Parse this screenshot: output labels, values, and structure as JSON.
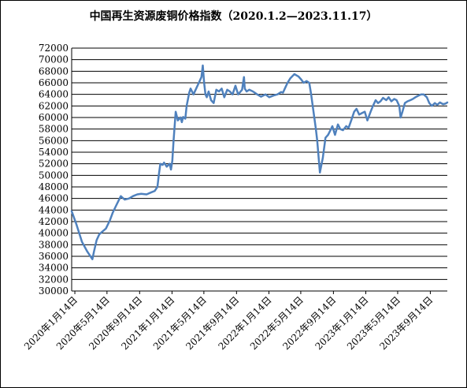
{
  "chart_data": {
    "type": "line",
    "title": "中国再生资源废铜价格指数（2020.1.2—2023.11.17）",
    "xlabel": "",
    "ylabel": "",
    "ylim": [
      30000,
      72000
    ],
    "yticks": [
      30000,
      32000,
      34000,
      36000,
      38000,
      40000,
      42000,
      44000,
      46000,
      48000,
      50000,
      52000,
      54000,
      56000,
      58000,
      60000,
      62000,
      64000,
      66000,
      68000,
      70000,
      72000
    ],
    "xlim": [
      "2020-01-02",
      "2023-11-17"
    ],
    "xticks": [
      {
        "date": "2020-01-14",
        "label": "2020年1月14日"
      },
      {
        "date": "2020-05-14",
        "label": "2020年5月14日"
      },
      {
        "date": "2020-09-14",
        "label": "2020年9月14日"
      },
      {
        "date": "2021-01-14",
        "label": "2021年1月14日"
      },
      {
        "date": "2021-05-14",
        "label": "2021年5月14日"
      },
      {
        "date": "2021-09-14",
        "label": "2021年9月14日"
      },
      {
        "date": "2022-01-14",
        "label": "2022年1月14日"
      },
      {
        "date": "2022-05-14",
        "label": "2022年5月14日"
      },
      {
        "date": "2022-09-14",
        "label": "2022年9月14日"
      },
      {
        "date": "2023-01-14",
        "label": "2023年1月14日"
      },
      {
        "date": "2023-05-14",
        "label": "2023年5月14日"
      },
      {
        "date": "2023-09-14",
        "label": "2023年9月14日"
      }
    ],
    "grid": "horizontal",
    "line_color": "#4f81bd",
    "series": [
      {
        "x": [
          "2020-01-02",
          "2020-01-20",
          "2020-02-10",
          "2020-03-01",
          "2020-03-20",
          "2020-03-26",
          "2020-04-05",
          "2020-04-15",
          "2020-04-25",
          "2020-05-10",
          "2020-05-25",
          "2020-06-05",
          "2020-06-20",
          "2020-07-05",
          "2020-07-10",
          "2020-07-20",
          "2020-08-05",
          "2020-08-20",
          "2020-09-05",
          "2020-09-20",
          "2020-10-10",
          "2020-10-25",
          "2020-11-10",
          "2020-11-20",
          "2020-11-25",
          "2020-12-01",
          "2020-12-10",
          "2020-12-15",
          "2020-12-25",
          "2021-01-05",
          "2021-01-10",
          "2021-01-15",
          "2021-01-20",
          "2021-01-28",
          "2021-02-05",
          "2021-02-15",
          "2021-02-20",
          "2021-02-25",
          "2021-03-05",
          "2021-03-10",
          "2021-03-20",
          "2021-03-25",
          "2021-04-05",
          "2021-04-15",
          "2021-04-25",
          "2021-05-05",
          "2021-05-10",
          "2021-05-15",
          "2021-05-20",
          "2021-05-25",
          "2021-06-01",
          "2021-06-10",
          "2021-06-20",
          "2021-06-30",
          "2021-07-10",
          "2021-07-20",
          "2021-07-30",
          "2021-08-10",
          "2021-08-20",
          "2021-08-30",
          "2021-09-10",
          "2021-09-20",
          "2021-10-05",
          "2021-10-12",
          "2021-10-15",
          "2021-10-22",
          "2021-11-01",
          "2021-11-15",
          "2021-12-01",
          "2021-12-15",
          "2022-01-01",
          "2022-01-15",
          "2022-02-01",
          "2022-02-15",
          "2022-03-01",
          "2022-03-08",
          "2022-03-15",
          "2022-03-25",
          "2022-04-05",
          "2022-04-20",
          "2022-05-05",
          "2022-05-15",
          "2022-05-25",
          "2022-06-05",
          "2022-06-15",
          "2022-06-22",
          "2022-07-01",
          "2022-07-10",
          "2022-07-15",
          "2022-07-25",
          "2022-08-05",
          "2022-08-15",
          "2022-08-25",
          "2022-09-05",
          "2022-09-10",
          "2022-09-20",
          "2022-10-01",
          "2022-10-10",
          "2022-10-20",
          "2022-11-01",
          "2022-11-10",
          "2022-11-20",
          "2022-12-01",
          "2022-12-10",
          "2022-12-20",
          "2023-01-01",
          "2023-01-10",
          "2023-01-20",
          "2023-02-01",
          "2023-02-10",
          "2023-02-20",
          "2023-03-01",
          "2023-03-10",
          "2023-03-20",
          "2023-04-01",
          "2023-04-10",
          "2023-04-20",
          "2023-05-01",
          "2023-05-10",
          "2023-05-20",
          "2023-05-25",
          "2023-06-01",
          "2023-06-10",
          "2023-06-20",
          "2023-07-01",
          "2023-07-10",
          "2023-07-20",
          "2023-08-01",
          "2023-08-10",
          "2023-08-20",
          "2023-09-01",
          "2023-09-10",
          "2023-09-20",
          "2023-10-01",
          "2023-10-10",
          "2023-10-20",
          "2023-11-01",
          "2023-11-10",
          "2023-11-17"
        ],
        "y": [
          43800,
          41500,
          38500,
          36800,
          35500,
          36800,
          38800,
          39800,
          40200,
          40800,
          42200,
          43600,
          45000,
          46400,
          46200,
          45800,
          46000,
          46400,
          46700,
          46800,
          46700,
          47000,
          47300,
          48000,
          50000,
          52000,
          51800,
          52200,
          51500,
          52000,
          51000,
          52500,
          56000,
          61000,
          59500,
          60000,
          59200,
          60100,
          59800,
          62000,
          64300,
          65000,
          64000,
          65000,
          66000,
          67000,
          69000,
          66000,
          64000,
          63500,
          64500,
          63000,
          62500,
          64800,
          64500,
          65000,
          63500,
          64800,
          64500,
          64000,
          65500,
          64000,
          64800,
          67000,
          65000,
          64500,
          64800,
          64500,
          64000,
          63600,
          64000,
          63500,
          63800,
          64000,
          64400,
          64300,
          65000,
          66000,
          66800,
          67500,
          67100,
          66600,
          66000,
          66300,
          66000,
          64000,
          61000,
          58000,
          56000,
          50500,
          53000,
          56500,
          57000,
          58000,
          58500,
          57000,
          58800,
          58000,
          57800,
          58500,
          58200,
          59500,
          61000,
          61500,
          60500,
          60800,
          61000,
          59500,
          61000,
          62000,
          63000,
          62500,
          62800,
          63400,
          63000,
          63500,
          62800,
          63200,
          63000,
          62000,
          60000,
          61000,
          62500,
          62800,
          63000,
          63200,
          63500,
          63800,
          64000,
          64000,
          63500,
          62500,
          62000,
          62500,
          62200,
          62600,
          62300,
          62400,
          62600
        ]
      }
    ]
  }
}
